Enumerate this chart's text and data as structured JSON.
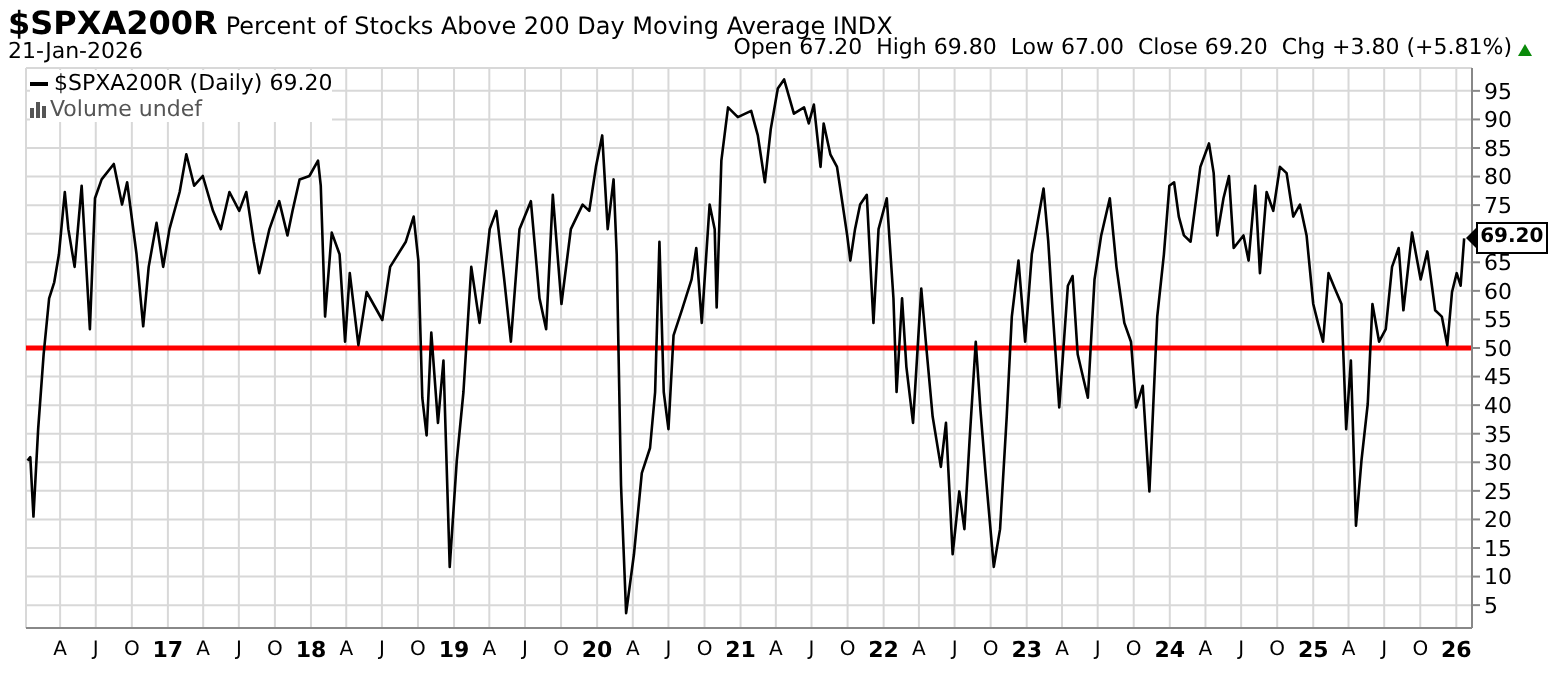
{
  "chart_data": {
    "type": "line",
    "title": "$SPXA200R",
    "subtitle": "Percent of Stocks Above 200 Day Moving Average INDX",
    "annotations": [
      "21-Jan-2026",
      "Open 67.20  High 69.80  Low 67.00  Close 69.20  Chg +3.80 (+5.81%)",
      "Volume undef",
      {
        "text": "69.20",
        "x": "2026-01-21",
        "y": 69.2
      }
    ],
    "series": [
      {
        "name": "$SPXA200R (Daily) 69.20",
        "color": "#000000",
        "x": [
          "2016-01-09",
          "2016-01-16",
          "2016-01-24",
          "2016-02-05",
          "2016-02-19",
          "2016-03-04",
          "2016-03-17",
          "2016-03-29",
          "2016-04-13",
          "2016-04-22",
          "2016-05-08",
          "2016-05-26",
          "2016-06-16",
          "2016-06-29",
          "2016-07-16",
          "2016-08-16",
          "2016-09-06",
          "2016-09-19",
          "2016-10-13",
          "2016-10-30",
          "2016-11-13",
          "2016-12-03",
          "2016-12-20",
          "2017-01-05",
          "2017-01-31",
          "2017-02-17",
          "2017-03-09",
          "2017-03-31",
          "2017-04-26",
          "2017-05-16",
          "2017-06-07",
          "2017-07-02",
          "2017-07-20",
          "2017-08-08",
          "2017-08-22",
          "2017-09-17",
          "2017-10-12",
          "2017-11-02",
          "2017-11-15",
          "2017-12-03",
          "2017-12-28",
          "2018-01-19",
          "2018-01-26",
          "2018-02-06",
          "2018-02-23",
          "2018-03-15",
          "2018-03-29",
          "2018-04-10",
          "2018-05-02",
          "2018-05-23",
          "2018-07-02",
          "2018-07-22",
          "2018-08-31",
          "2018-09-20",
          "2018-10-02",
          "2018-10-12",
          "2018-10-23",
          "2018-11-04",
          "2018-11-21",
          "2018-12-05",
          "2018-12-21",
          "2019-01-08",
          "2019-01-25",
          "2019-02-14",
          "2019-03-07",
          "2019-04-02",
          "2019-04-19",
          "2019-05-09",
          "2019-05-26",
          "2019-06-17",
          "2019-07-16",
          "2019-08-07",
          "2019-08-24",
          "2019-09-10",
          "2019-10-02",
          "2019-10-26",
          "2019-11-25",
          "2019-12-12",
          "2019-12-29",
          "2020-01-14",
          "2020-01-28",
          "2020-02-12",
          "2020-02-20",
          "2020-03-02",
          "2020-03-15",
          "2020-04-04",
          "2020-04-24",
          "2020-05-15",
          "2020-05-28",
          "2020-06-08",
          "2020-06-19",
          "2020-07-01",
          "2020-07-14",
          "2020-08-04",
          "2020-08-29",
          "2020-09-10",
          "2020-09-24",
          "2020-10-14",
          "2020-10-27",
          "2020-11-01",
          "2020-11-13",
          "2020-11-30",
          "2020-12-25",
          "2021-01-28",
          "2021-02-14",
          "2021-03-04",
          "2021-03-19",
          "2021-04-06",
          "2021-04-22",
          "2021-05-17",
          "2021-06-12",
          "2021-06-24",
          "2021-07-07",
          "2021-07-24",
          "2021-08-01",
          "2021-08-18",
          "2021-09-04",
          "2021-09-16",
          "2021-09-30",
          "2021-10-08",
          "2021-10-20",
          "2021-11-02",
          "2021-11-19",
          "2021-12-06",
          "2021-12-19",
          "2022-01-09",
          "2022-01-26",
          "2022-02-03",
          "2022-02-17",
          "2022-02-28",
          "2022-03-17",
          "2022-04-07",
          "2022-04-20",
          "2022-05-06",
          "2022-05-27",
          "2022-06-09",
          "2022-06-26",
          "2022-07-13",
          "2022-07-26",
          "2022-08-08",
          "2022-08-24",
          "2022-09-05",
          "2022-09-18",
          "2022-10-09",
          "2022-10-25",
          "2022-11-11",
          "2022-11-24",
          "2022-12-11",
          "2022-12-28",
          "2023-01-14",
          "2023-02-13",
          "2023-02-25",
          "2023-03-08",
          "2023-03-25",
          "2023-04-16",
          "2023-04-28",
          "2023-05-11",
          "2023-06-06",
          "2023-06-23",
          "2023-07-10",
          "2023-08-01",
          "2023-08-18",
          "2023-09-07",
          "2023-09-24",
          "2023-10-07",
          "2023-10-24",
          "2023-11-10",
          "2023-11-30",
          "2023-12-17",
          "2023-12-31",
          "2024-01-12",
          "2024-01-24",
          "2024-02-06",
          "2024-02-23",
          "2024-03-19",
          "2024-04-10",
          "2024-04-22",
          "2024-05-01",
          "2024-05-17",
          "2024-05-31",
          "2024-06-12",
          "2024-07-07",
          "2024-07-20",
          "2024-08-06",
          "2024-08-18",
          "2024-09-04",
          "2024-09-21",
          "2024-10-08",
          "2024-10-25",
          "2024-11-11",
          "2024-11-28",
          "2024-12-15",
          "2025-01-01",
          "2025-01-13",
          "2025-01-26",
          "2025-02-09",
          "2025-02-25",
          "2025-03-14",
          "2025-03-26",
          "2025-04-07",
          "2025-04-20",
          "2025-05-04",
          "2025-05-20",
          "2025-06-01",
          "2025-06-18",
          "2025-07-05",
          "2025-07-21",
          "2025-08-07",
          "2025-08-19",
          "2025-09-10",
          "2025-10-02",
          "2025-10-19",
          "2025-11-08",
          "2025-11-25",
          "2025-12-09",
          "2025-12-21",
          "2026-01-02",
          "2026-01-12",
          "2026-01-21"
        ],
        "values": [
          30.3,
          30.9,
          20.5,
          35.8,
          48.9,
          58.7,
          61.5,
          66.4,
          77.3,
          70.8,
          64.2,
          78.4,
          53.3,
          76.2,
          79.5,
          82.2,
          75.1,
          79.0,
          66.4,
          53.8,
          64.2,
          71.9,
          64.2,
          70.8,
          77.3,
          83.9,
          78.4,
          80.1,
          74.0,
          70.8,
          77.3,
          74.0,
          77.3,
          68.6,
          63.1,
          70.8,
          75.7,
          69.7,
          74.0,
          79.5,
          80.1,
          82.8,
          78.4,
          55.5,
          70.2,
          66.4,
          51.1,
          63.1,
          50.5,
          59.8,
          54.9,
          64.2,
          68.6,
          73.0,
          65.3,
          41.3,
          34.7,
          52.7,
          36.9,
          47.8,
          11.7,
          30.3,
          42.3,
          64.2,
          54.4,
          70.8,
          74.0,
          62.0,
          51.1,
          70.8,
          75.7,
          58.7,
          53.3,
          76.8,
          57.7,
          70.8,
          75.1,
          74.0,
          81.7,
          87.2,
          70.8,
          79.5,
          66.4,
          26.0,
          3.6,
          13.9,
          28.1,
          32.5,
          42.3,
          68.6,
          42.3,
          35.8,
          52.2,
          56.6,
          62.0,
          67.5,
          54.4,
          75.1,
          70.8,
          57.1,
          82.8,
          92.1,
          90.4,
          91.5,
          87.2,
          79.0,
          88.3,
          95.4,
          97.0,
          91.0,
          92.1,
          89.3,
          92.6,
          81.7,
          89.3,
          83.9,
          81.7,
          76.2,
          69.7,
          65.3,
          70.8,
          75.1,
          76.8,
          54.4,
          70.8,
          76.2,
          58.7,
          42.3,
          58.7,
          46.7,
          36.9,
          60.4,
          50.0,
          38.0,
          29.2,
          36.9,
          13.9,
          24.9,
          18.3,
          33.6,
          51.1,
          39.1,
          28.1,
          11.7,
          18.3,
          38.0,
          55.5,
          65.3,
          51.1,
          66.4,
          77.9,
          68.6,
          56.6,
          39.6,
          60.9,
          62.6,
          48.9,
          41.3,
          62.0,
          69.7,
          76.2,
          64.2,
          54.4,
          51.1,
          39.6,
          43.4,
          24.9,
          55.5,
          66.4,
          78.4,
          79.0,
          73.0,
          69.7,
          68.6,
          81.7,
          85.8,
          80.6,
          69.7,
          76.2,
          80.1,
          67.5,
          69.7,
          65.3,
          78.4,
          63.1,
          77.3,
          74.0,
          81.7,
          80.6,
          73.0,
          75.1,
          69.7,
          57.7,
          54.4,
          51.1,
          63.1,
          60.4,
          57.7,
          35.8,
          47.8,
          18.9,
          30.3,
          40.2,
          57.7,
          51.1,
          53.3,
          64.2,
          67.5,
          56.6,
          70.2,
          62.0,
          66.9,
          56.6,
          55.5,
          50.5,
          59.8,
          63.1,
          60.9,
          69.2
        ]
      }
    ],
    "ref_lines": [
      {
        "axis": "y",
        "value": 50,
        "color": "#ff0000"
      }
    ],
    "xlim": [
      "2016-01-05",
      "2026-02-10"
    ],
    "xticks": [
      {
        "value": "2016-04-01",
        "label": "A"
      },
      {
        "value": "2016-07-01",
        "label": "J"
      },
      {
        "value": "2016-10-01",
        "label": "O"
      },
      {
        "value": "2017-01-01",
        "label": "17"
      },
      {
        "value": "2017-04-01",
        "label": "A"
      },
      {
        "value": "2017-07-01",
        "label": "J"
      },
      {
        "value": "2017-10-01",
        "label": "O"
      },
      {
        "value": "2018-01-01",
        "label": "18"
      },
      {
        "value": "2018-04-01",
        "label": "A"
      },
      {
        "value": "2018-07-01",
        "label": "J"
      },
      {
        "value": "2018-10-01",
        "label": "O"
      },
      {
        "value": "2019-01-01",
        "label": "19"
      },
      {
        "value": "2019-04-01",
        "label": "A"
      },
      {
        "value": "2019-07-01",
        "label": "J"
      },
      {
        "value": "2019-10-01",
        "label": "O"
      },
      {
        "value": "2020-01-01",
        "label": "20"
      },
      {
        "value": "2020-04-01",
        "label": "A"
      },
      {
        "value": "2020-07-01",
        "label": "J"
      },
      {
        "value": "2020-10-01",
        "label": "O"
      },
      {
        "value": "2021-01-01",
        "label": "21"
      },
      {
        "value": "2021-04-01",
        "label": "A"
      },
      {
        "value": "2021-07-01",
        "label": "J"
      },
      {
        "value": "2021-10-01",
        "label": "O"
      },
      {
        "value": "2022-01-01",
        "label": "22"
      },
      {
        "value": "2022-04-01",
        "label": "A"
      },
      {
        "value": "2022-07-01",
        "label": "J"
      },
      {
        "value": "2022-10-01",
        "label": "O"
      },
      {
        "value": "2023-01-01",
        "label": "23"
      },
      {
        "value": "2023-04-01",
        "label": "A"
      },
      {
        "value": "2023-07-01",
        "label": "J"
      },
      {
        "value": "2023-10-01",
        "label": "O"
      },
      {
        "value": "2024-01-01",
        "label": "24"
      },
      {
        "value": "2024-04-01",
        "label": "A"
      },
      {
        "value": "2024-07-01",
        "label": "J"
      },
      {
        "value": "2024-10-01",
        "label": "O"
      },
      {
        "value": "2025-01-01",
        "label": "25"
      },
      {
        "value": "2025-04-01",
        "label": "A"
      },
      {
        "value": "2025-07-01",
        "label": "J"
      },
      {
        "value": "2025-10-01",
        "label": "O"
      },
      {
        "value": "2026-01-01",
        "label": "26"
      }
    ],
    "ylim": [
      1,
      99
    ],
    "yticks": [
      5,
      10,
      15,
      20,
      25,
      30,
      35,
      40,
      45,
      50,
      55,
      60,
      65,
      {
        "value": 70,
        "label": null
      },
      75,
      80,
      85,
      90,
      95
    ],
    "grid": true,
    "legend": "top left",
    "marker": "none",
    "line_style": "solid"
  }
}
